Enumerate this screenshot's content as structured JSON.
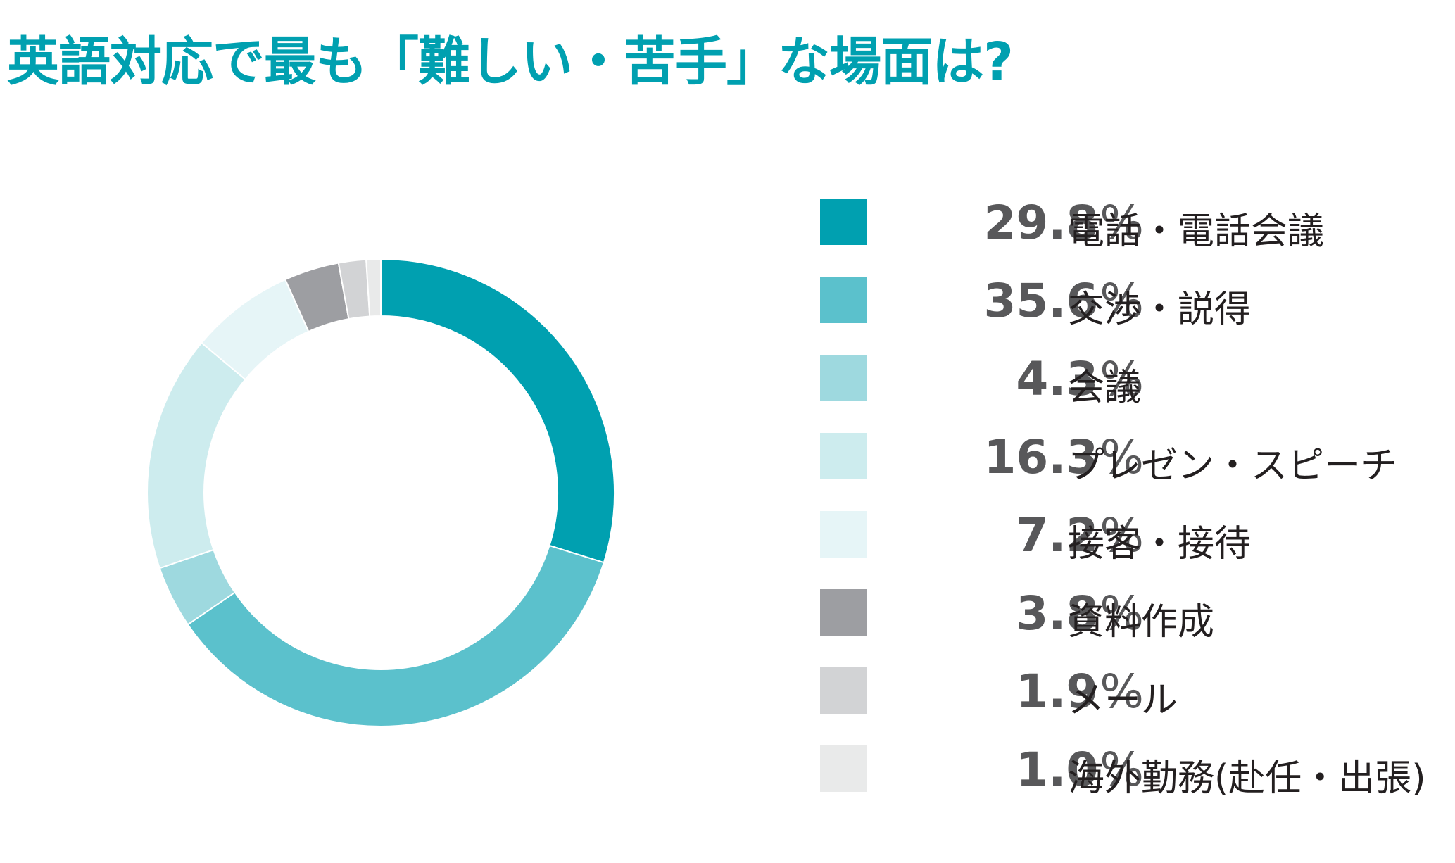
{
  "title": "英語対応で最も「難しい・苦手」な場面は?",
  "chart_data": {
    "type": "pie",
    "title": "英語対応で最も「難しい・苦手」な場面は?",
    "categories": [
      "電話・電話会議",
      "交渉・説得",
      "会議",
      "プレゼン・スピーチ",
      "接客・接待",
      "資料作成",
      "メール",
      "海外勤務(赴任・出張)"
    ],
    "values": [
      29.8,
      35.6,
      4.3,
      16.3,
      7.2,
      3.8,
      1.9,
      1.0
    ],
    "value_labels": [
      "29.8",
      "35.6",
      "4.3",
      "16.3",
      "7.2",
      "3.8",
      "1.9",
      "1.0"
    ],
    "unit": "%",
    "colors": [
      "#00a0b0",
      "#5bc1cc",
      "#9ed9df",
      "#cdecee",
      "#e6f5f7",
      "#9d9ea2",
      "#d2d3d5",
      "#e9eaea"
    ],
    "donut": true,
    "legend_position": "right"
  }
}
